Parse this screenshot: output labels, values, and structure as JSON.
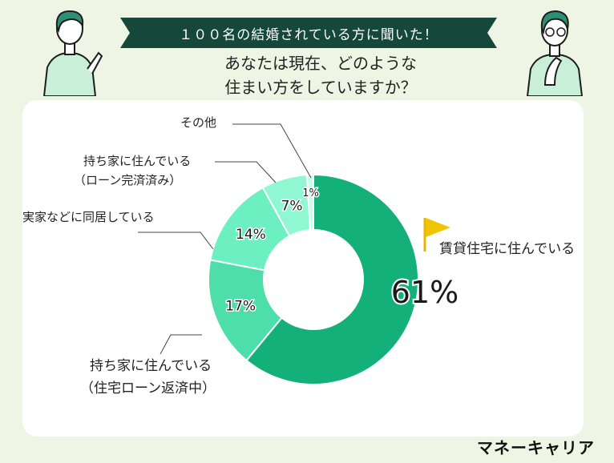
{
  "header": {
    "banner": "１００名の結婚されている方に聞いた！",
    "question_line1": "あなたは現在、どのような",
    "question_line2": "住まい方をしていますか？"
  },
  "brand": "マネーキャリア",
  "colors": {
    "banner": "#15483a",
    "background": "#eef5e4"
  },
  "chart_data": {
    "type": "pie",
    "donut": true,
    "slices": [
      {
        "label": "賃貸住宅に住んでいる",
        "value": 61,
        "display": "61%",
        "color": "#14b07a"
      },
      {
        "label": "持ち家に住んでいる（住宅ローン返済中）",
        "label_lines": [
          "持ち家に住んでいる",
          "（住宅ローン返済中）"
        ],
        "value": 17,
        "display": "17%",
        "color": "#4ddeaa"
      },
      {
        "label": "実家などに同居している",
        "label_lines": [
          "実家などに同居している"
        ],
        "value": 14,
        "display": "14%",
        "color": "#6cf0c2"
      },
      {
        "label": "持ち家に住んでいる（ローン完済済み）",
        "label_lines": [
          "持ち家に住んでいる",
          "（ローン完済済み）"
        ],
        "value": 7,
        "display": "7%",
        "color": "#8ff8d2"
      },
      {
        "label": "その他",
        "label_lines": [
          "その他"
        ],
        "value": 1,
        "display": "1%",
        "color": "#c8fde9"
      }
    ]
  }
}
